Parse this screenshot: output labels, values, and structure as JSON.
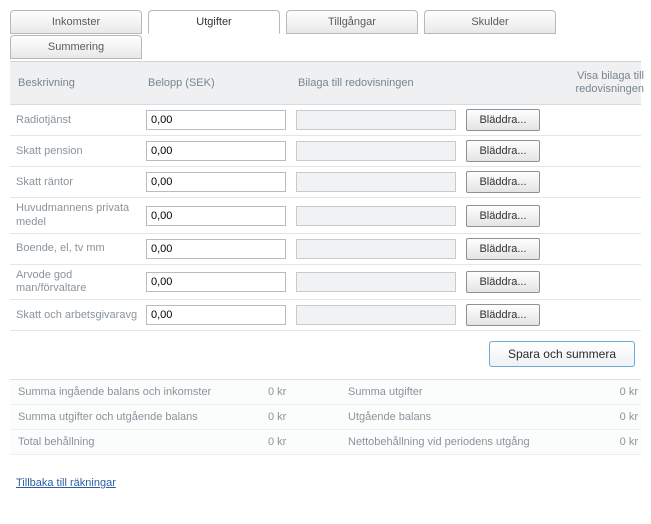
{
  "tabs": {
    "row1": [
      {
        "label": "Inkomster",
        "active": false
      },
      {
        "label": "Utgifter",
        "active": true
      },
      {
        "label": "Tillgångar",
        "active": false
      },
      {
        "label": "Skulder",
        "active": false
      }
    ],
    "row2": [
      {
        "label": "Summering",
        "active": false
      }
    ]
  },
  "columns": {
    "desc": "Beskrivning",
    "amount": "Belopp (SEK)",
    "attachment": "Bilaga till redovisningen",
    "show": "Visa bilaga till redovisningen"
  },
  "browse_label": "Bläddra...",
  "rows": [
    {
      "desc": "Radiotjänst",
      "amount": "0,00"
    },
    {
      "desc": "Skatt pension",
      "amount": "0,00"
    },
    {
      "desc": "Skatt räntor",
      "amount": "0,00"
    },
    {
      "desc": "Huvudmannens privata medel",
      "amount": "0,00"
    },
    {
      "desc": "Boende, el, tv mm",
      "amount": "0,00"
    },
    {
      "desc": "Arvode god man/förvaltare",
      "amount": "0,00"
    },
    {
      "desc": "Skatt och arbetsgivaravg",
      "amount": "0,00"
    }
  ],
  "save_label": "Spara och summera",
  "summary": [
    {
      "l1": "Summa ingående balans och inkomster",
      "v1": "0 kr",
      "l2": "Summa utgifter",
      "v2": "0 kr"
    },
    {
      "l1": "Summa utgifter och utgående balans",
      "v1": "0 kr",
      "l2": "Utgående balans",
      "v2": "0 kr"
    },
    {
      "l1": "Total behållning",
      "v1": "0 kr",
      "l2": "Nettobehållning vid periodens utgång",
      "v2": "0 kr"
    }
  ],
  "back_link": "Tillbaka till räkningar",
  "colors": {
    "tab_border": "#b5b9bc",
    "text_muted": "#8a949c",
    "header_bg": "#eef0f1",
    "save_border": "#6fa9d6",
    "link": "#2b5fa4"
  }
}
